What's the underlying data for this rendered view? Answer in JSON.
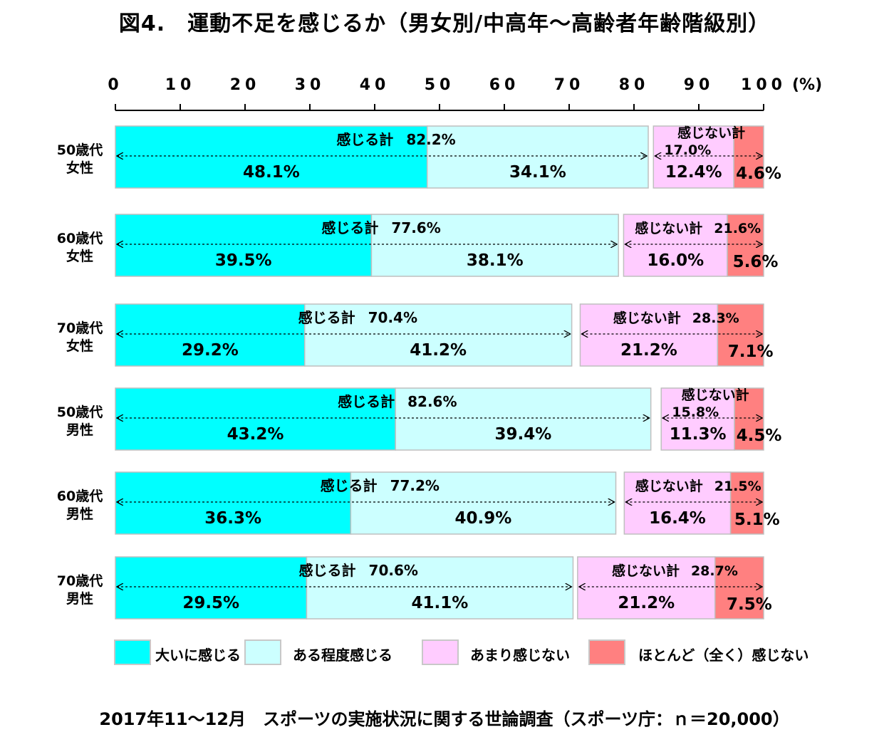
{
  "title": "図4.　運動不足を感じるか（男女別/中高年～高齢者年齢階級別）",
  "footer": "2017年11～12月　スポーツの実施状況に関する世論調査（スポーツ庁：ｎ＝20,000）",
  "colors": {
    "strongly_feel": "#00ffff",
    "somewhat_feel": "#ccffff",
    "not_much": "#ffccff",
    "not_at_all": "#ff8080"
  },
  "chart_data": {
    "type": "bar",
    "orientation": "horizontal-stacked",
    "axis": {
      "ticks": [
        "0",
        "10",
        "20",
        "30",
        "40",
        "50",
        "60",
        "70",
        "80",
        "90",
        "100"
      ],
      "unit": "(%)",
      "xlim": [
        0,
        100
      ]
    },
    "group_labels": {
      "feel": "感じる計",
      "not_feel": "感じない計"
    },
    "categories": [
      [
        "50歳代",
        "女性"
      ],
      [
        "60歳代",
        "女性"
      ],
      [
        "70歳代",
        "女性"
      ],
      [
        "50歳代",
        "男性"
      ],
      [
        "60歳代",
        "男性"
      ],
      [
        "70歳代",
        "男性"
      ]
    ],
    "series": [
      {
        "name": "大いに感じる",
        "values": [
          48.1,
          39.5,
          29.2,
          43.2,
          36.3,
          29.5
        ],
        "labels": [
          "48.1%",
          "39.5%",
          "29.2%",
          "43.2%",
          "36.3%",
          "29.5%"
        ]
      },
      {
        "name": "ある程度感じる",
        "values": [
          34.1,
          38.1,
          41.2,
          39.4,
          40.9,
          41.1
        ],
        "labels": [
          "34.1%",
          "38.1%",
          "41.2%",
          "39.4%",
          "40.9%",
          "41.1%"
        ]
      },
      {
        "name": "あまり感じない",
        "values": [
          12.4,
          16.0,
          21.2,
          11.3,
          16.4,
          21.2
        ],
        "labels": [
          "12.4%",
          "16.0%",
          "21.2%",
          "11.3%",
          "16.4%",
          "21.2%"
        ]
      },
      {
        "name": "ほとんど（全く）感じない",
        "values": [
          4.6,
          5.6,
          7.1,
          4.5,
          5.1,
          7.5
        ],
        "labels": [
          "4.6%",
          "5.6%",
          "7.1%",
          "4.5%",
          "5.1%",
          "7.5%"
        ]
      }
    ],
    "totals_feel": [
      "82.2%",
      "77.6%",
      "70.4%",
      "82.6%",
      "77.2%",
      "70.6%"
    ],
    "totals_not_feel": [
      "17.0%",
      "21.6%",
      "28.3%",
      "15.8%",
      "21.5%",
      "28.7%"
    ]
  }
}
